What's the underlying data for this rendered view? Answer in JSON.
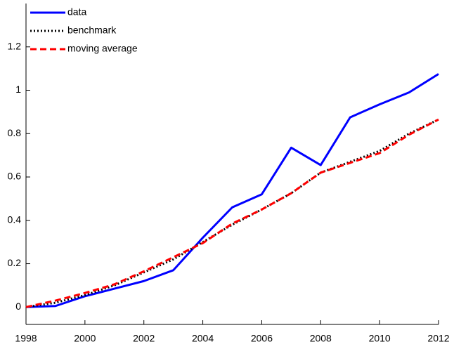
{
  "chart_data": {
    "type": "line",
    "x": [
      1998,
      1999,
      2000,
      2001,
      2002,
      2003,
      2004,
      2005,
      2006,
      2007,
      2008,
      2009,
      2010,
      2011,
      2012
    ],
    "series": [
      {
        "name": "data",
        "color": "#0000ff",
        "linestyle": "solid",
        "values": [
          0,
          0.005,
          0.05,
          0.085,
          0.12,
          0.17,
          0.32,
          0.46,
          0.52,
          0.735,
          0.655,
          0.875,
          0.935,
          0.99,
          1.075
        ]
      },
      {
        "name": "benchmark",
        "color": "#000000",
        "linestyle": "dotted",
        "values": [
          0,
          0.02,
          0.055,
          0.1,
          0.16,
          0.22,
          0.3,
          0.38,
          0.45,
          0.525,
          0.62,
          0.67,
          0.72,
          0.8,
          0.865
        ]
      },
      {
        "name": "moving average",
        "color": "#ff0000",
        "linestyle": "dashed",
        "values": [
          0,
          0.03,
          0.065,
          0.105,
          0.165,
          0.23,
          0.295,
          0.385,
          0.45,
          0.525,
          0.62,
          0.665,
          0.71,
          0.795,
          0.865
        ]
      }
    ],
    "xlim": [
      1998,
      2012
    ],
    "xticks": [
      1998,
      2000,
      2002,
      2004,
      2006,
      2008,
      2010,
      2012
    ],
    "ylim": [
      -0.08,
      1.4
    ],
    "yticks": [
      0,
      0.2,
      0.4,
      0.6,
      0.8,
      1,
      1.2
    ],
    "grid": false,
    "legend": "upper-left"
  }
}
